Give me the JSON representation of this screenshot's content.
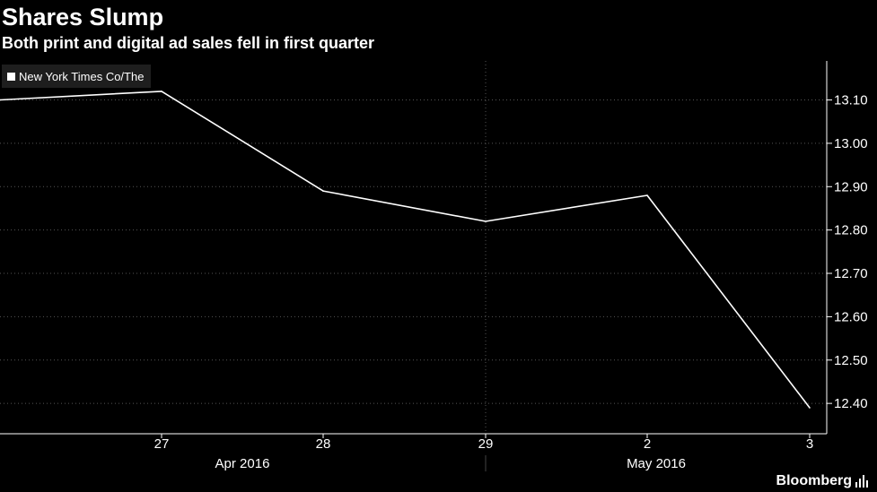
{
  "chart_data": {
    "type": "line",
    "title": "Shares Slump",
    "subtitle": "Both print and digital ad sales fell in first quarter",
    "series": [
      {
        "name": "New York Times Co/The",
        "values": [
          13.1,
          13.12,
          12.89,
          12.82,
          12.88,
          12.39
        ]
      }
    ],
    "x_tick_labels": [
      "27",
      "28",
      "29",
      "2",
      "3"
    ],
    "x_group_labels": [
      "Apr 2016",
      "May 2016"
    ],
    "y_ticks": [
      12.4,
      12.5,
      12.6,
      12.7,
      12.8,
      12.9,
      13.0,
      13.1
    ],
    "ylim": [
      12.33,
      13.19
    ],
    "grid": true,
    "legend_position": "top-left",
    "axis_side": "right"
  },
  "colors": {
    "background": "#000000",
    "line": "#ffffff",
    "grid": "#555555",
    "legend_bg": "#1e1e1e"
  },
  "footer": {
    "brand": "Bloomberg",
    "brand_icon": "bar-chart-icon"
  }
}
